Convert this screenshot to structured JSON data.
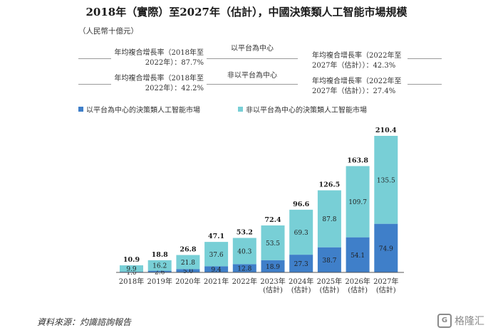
{
  "title": "2018年（實際）至2027年（估計），中國決策類人工智能市場規模",
  "unit": "（人民幣十億元）",
  "cagr": {
    "platform_label": "以平台為中心",
    "non_platform_label": "非以平台為中心",
    "platform_hist": [
      "年均複合增長率（2018年至",
      "2022年）：87.7%"
    ],
    "platform_fcst": [
      "年均複合增長率（2022年至",
      "2027年（估計））：42.3%"
    ],
    "non_platform_hist": [
      "年均複合增長率（2018年至",
      "2022年）：42.2%"
    ],
    "non_platform_fcst": [
      "年均複合增長率（2022年至",
      "2027年（估計））：27.4%"
    ]
  },
  "legend": {
    "platform": "以平台為中心的決策類人工智能市場",
    "non_platform": "非以平台為中心的決策類人工智能市場"
  },
  "colors": {
    "platform": "#3f7fc9",
    "non_platform": "#78cfd6",
    "axis": "#555555"
  },
  "chart_data": {
    "type": "bar",
    "stacked": true,
    "categories": [
      [
        "2018年"
      ],
      [
        "2019年"
      ],
      [
        "2020年"
      ],
      [
        "2021年"
      ],
      [
        "2022年"
      ],
      [
        "2023年",
        "(估計)"
      ],
      [
        "2024年",
        "(估計)"
      ],
      [
        "2025年",
        "(估計)"
      ],
      [
        "2026年",
        "(估計)"
      ],
      [
        "2027年",
        "(估計)"
      ]
    ],
    "series": [
      {
        "name": "以平台為中心的決策類人工智能市場",
        "values": [
          1.0,
          2.6,
          5.0,
          9.4,
          12.8,
          18.9,
          27.3,
          38.7,
          54.1,
          74.9
        ]
      },
      {
        "name": "非以平台為中心的決策類人工智能市場",
        "values": [
          9.9,
          16.2,
          21.8,
          37.6,
          40.3,
          53.5,
          69.3,
          87.8,
          109.7,
          135.5
        ]
      }
    ],
    "totals": [
      10.9,
      18.8,
      26.8,
      47.1,
      53.2,
      72.4,
      96.6,
      126.5,
      163.8,
      210.4
    ],
    "ylim": [
      0,
      210.4
    ]
  },
  "source": "資料來源：灼識諮詢報告",
  "watermark": "格隆汇",
  "watermark_logo": "G"
}
